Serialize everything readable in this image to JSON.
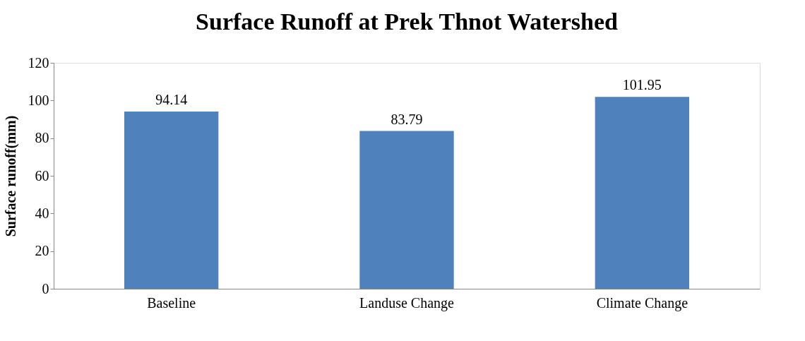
{
  "chart_data": {
    "type": "bar",
    "title": "Surface Runoff at Prek Thnot Watershed",
    "ylabel": "Surface runoff(mm)",
    "categories": [
      "Baseline",
      "Landuse Change",
      "Climate Change"
    ],
    "values": [
      94.14,
      83.79,
      101.95
    ],
    "color": "#4f81bd",
    "ylim": [
      0,
      120
    ],
    "yticks": [
      0,
      20,
      40,
      60,
      80,
      100,
      120
    ],
    "grid": false,
    "data_labels": true
  }
}
